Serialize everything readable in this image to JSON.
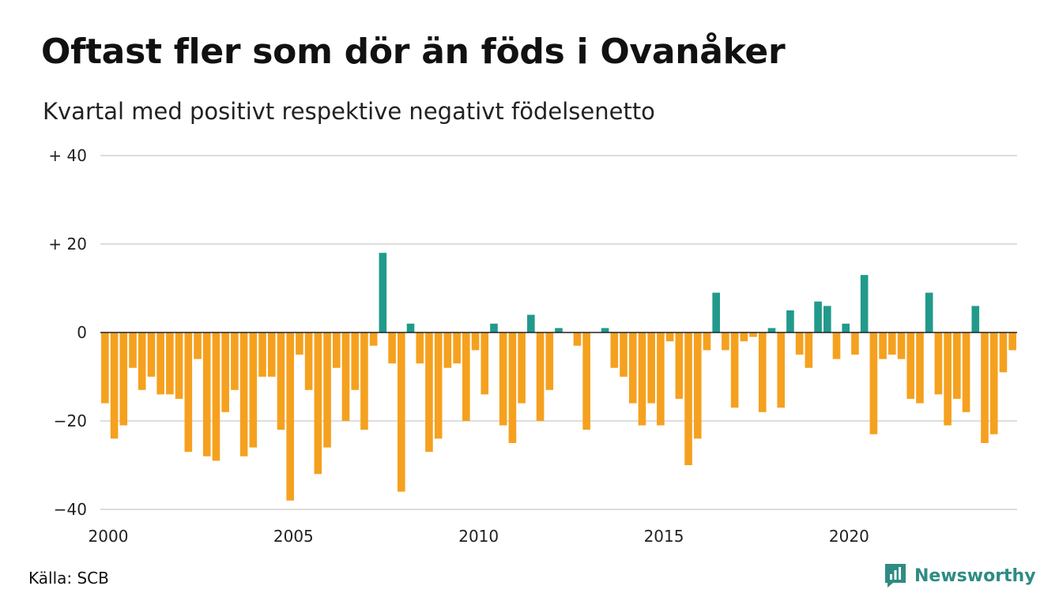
{
  "header": {
    "title": "Oftast fler som dör än föds i Ovanåker",
    "subtitle": "Kvartal med positivt respektive negativt födelsenetto"
  },
  "footer": {
    "source": "Källa: SCB",
    "brand": "Newsworthy",
    "brand_icon": "newsworthy-logo-icon"
  },
  "colors": {
    "positive": "#219a8c",
    "negative": "#f5a11f",
    "grid": "#dddddd",
    "zero_line": "#222222",
    "brand": "#2e8c83"
  },
  "chart_data": {
    "type": "bar",
    "title": "Oftast fler som dör än föds i Ovanåker",
    "subtitle": "Kvartal med positivt respektive negativt födelsenetto",
    "xlabel": "",
    "ylabel": "",
    "ylim": [
      -40,
      40
    ],
    "y_ticks": [
      {
        "value": 40,
        "label": "+ 40"
      },
      {
        "value": 20,
        "label": "+ 20"
      },
      {
        "value": 0,
        "label": "0"
      },
      {
        "value": -20,
        "label": "−20"
      },
      {
        "value": -40,
        "label": "−40"
      }
    ],
    "x_ticks": [
      "2000",
      "2005",
      "2010",
      "2015",
      "2020"
    ],
    "start_year": 2000,
    "periods_per_year": 4,
    "grid": true,
    "values": [
      -16,
      -24,
      -21,
      -8,
      -13,
      -10,
      -14,
      -14,
      -15,
      -27,
      -6,
      -28,
      -29,
      -18,
      -13,
      -28,
      -26,
      -10,
      -10,
      -22,
      -38,
      -5,
      -13,
      -32,
      -26,
      -8,
      -20,
      -13,
      -22,
      -3,
      18,
      -7,
      -36,
      2,
      -7,
      -27,
      -24,
      -8,
      -7,
      -20,
      -4,
      -14,
      2,
      -21,
      -25,
      -16,
      4,
      -20,
      -13,
      1,
      0,
      -3,
      -22,
      0,
      1,
      -8,
      -10,
      -16,
      -21,
      -16,
      -21,
      -2,
      -15,
      -30,
      -24,
      -4,
      9,
      -4,
      -17,
      -2,
      -1,
      -18,
      1,
      -17,
      5,
      -5,
      -8,
      7,
      6,
      -6,
      2,
      -5,
      13,
      -23,
      -6,
      -5,
      -6,
      -15,
      -16,
      9,
      -14,
      -21,
      -15,
      -18,
      6,
      -25,
      -23,
      -9,
      -4
    ]
  }
}
